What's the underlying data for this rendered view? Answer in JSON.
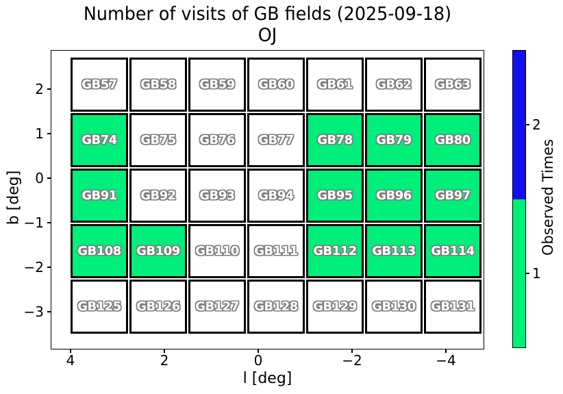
{
  "title": {
    "line1": "Number of visits of GB fields (2025-09-18)",
    "line2": "OJ"
  },
  "axes": {
    "xlabel": "l [deg]",
    "ylabel": "b [deg]",
    "xticks": [
      "4",
      "2",
      "0",
      "−2",
      "−4"
    ],
    "yticks": [
      "2",
      "1",
      "0",
      "−1",
      "−2",
      "−3"
    ]
  },
  "colorbar": {
    "label": "Observed Times",
    "ticks": [
      {
        "value": "2",
        "color": "#1010f0"
      },
      {
        "value": "1",
        "color": "#00ee7a"
      }
    ]
  },
  "colors": {
    "observed_once": "#00ee7a",
    "observed_twice": "#1010f0",
    "unobserved": "#ffffff",
    "cell_border": "#000000",
    "label_fill": "#ffffff",
    "label_outline": "#7d7d7d"
  },
  "grid": {
    "rows": [
      {
        "fields": [
          {
            "label": "GB57",
            "visits": 0
          },
          {
            "label": "GB58",
            "visits": 0
          },
          {
            "label": "GB59",
            "visits": 0
          },
          {
            "label": "GB60",
            "visits": 0
          },
          {
            "label": "GB61",
            "visits": 0
          },
          {
            "label": "GB62",
            "visits": 0
          },
          {
            "label": "GB63",
            "visits": 0
          }
        ]
      },
      {
        "fields": [
          {
            "label": "GB74",
            "visits": 1
          },
          {
            "label": "GB75",
            "visits": 0
          },
          {
            "label": "GB76",
            "visits": 0
          },
          {
            "label": "GB77",
            "visits": 0
          },
          {
            "label": "GB78",
            "visits": 1
          },
          {
            "label": "GB79",
            "visits": 1
          },
          {
            "label": "GB80",
            "visits": 1
          }
        ]
      },
      {
        "fields": [
          {
            "label": "GB91",
            "visits": 1
          },
          {
            "label": "GB92",
            "visits": 0
          },
          {
            "label": "GB93",
            "visits": 0
          },
          {
            "label": "GB94",
            "visits": 0
          },
          {
            "label": "GB95",
            "visits": 1
          },
          {
            "label": "GB96",
            "visits": 1
          },
          {
            "label": "GB97",
            "visits": 1
          }
        ]
      },
      {
        "fields": [
          {
            "label": "GB108",
            "visits": 1
          },
          {
            "label": "GB109",
            "visits": 1
          },
          {
            "label": "GB110",
            "visits": 0
          },
          {
            "label": "GB111",
            "visits": 0
          },
          {
            "label": "GB112",
            "visits": 1
          },
          {
            "label": "GB113",
            "visits": 1
          },
          {
            "label": "GB114",
            "visits": 1
          }
        ]
      },
      {
        "fields": [
          {
            "label": "GB125",
            "visits": 0
          },
          {
            "label": "GB126",
            "visits": 0
          },
          {
            "label": "GB127",
            "visits": 0
          },
          {
            "label": "GB128",
            "visits": 0
          },
          {
            "label": "GB129",
            "visits": 0
          },
          {
            "label": "GB130",
            "visits": 0
          },
          {
            "label": "GB131",
            "visits": 0
          }
        ]
      }
    ]
  },
  "chart_data": {
    "type": "heatmap",
    "title": "Number of visits of GB fields (2025-09-18)",
    "subtitle": "OJ",
    "xlabel": "l [deg]",
    "ylabel": "b [deg]",
    "xlim": [
      4.4,
      -4.8
    ],
    "ylim": [
      -3.85,
      2.9
    ],
    "x_axis_reversed": true,
    "xticks": [
      4,
      2,
      0,
      -2,
      -4
    ],
    "yticks": [
      2,
      1,
      0,
      -1,
      -2,
      -3
    ],
    "field_labels": [
      [
        "GB57",
        "GB58",
        "GB59",
        "GB60",
        "GB61",
        "GB62",
        "GB63"
      ],
      [
        "GB74",
        "GB75",
        "GB76",
        "GB77",
        "GB78",
        "GB79",
        "GB80"
      ],
      [
        "GB91",
        "GB92",
        "GB93",
        "GB94",
        "GB95",
        "GB96",
        "GB97"
      ],
      [
        "GB108",
        "GB109",
        "GB110",
        "GB111",
        "GB112",
        "GB113",
        "GB114"
      ],
      [
        "GB125",
        "GB126",
        "GB127",
        "GB128",
        "GB129",
        "GB130",
        "GB131"
      ]
    ],
    "visits": [
      [
        0,
        0,
        0,
        0,
        0,
        0,
        0
      ],
      [
        1,
        0,
        0,
        0,
        1,
        1,
        1
      ],
      [
        1,
        0,
        0,
        0,
        1,
        1,
        1
      ],
      [
        1,
        1,
        0,
        0,
        1,
        1,
        1
      ],
      [
        0,
        0,
        0,
        0,
        0,
        0,
        0
      ]
    ],
    "colorbar": {
      "label": "Observed Times",
      "position": "right",
      "levels": [
        {
          "value": 1,
          "color": "#00ee7a"
        },
        {
          "value": 2,
          "color": "#1010f0"
        }
      ]
    },
    "grid": "off",
    "legend": "none"
  }
}
